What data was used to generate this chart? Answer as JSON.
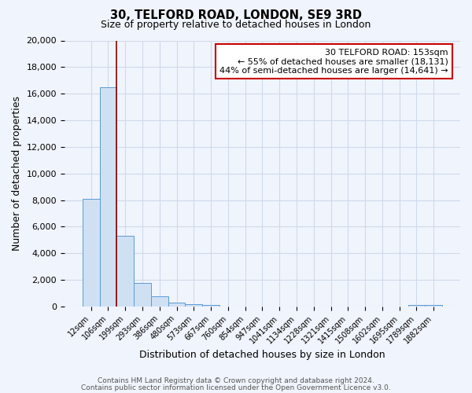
{
  "title": "30, TELFORD ROAD, LONDON, SE9 3RD",
  "subtitle": "Size of property relative to detached houses in London",
  "xlabel": "Distribution of detached houses by size in London",
  "ylabel": "Number of detached properties",
  "bar_labels": [
    "12sqm",
    "106sqm",
    "199sqm",
    "293sqm",
    "386sqm",
    "480sqm",
    "573sqm",
    "667sqm",
    "760sqm",
    "854sqm",
    "947sqm",
    "1041sqm",
    "1134sqm",
    "1228sqm",
    "1321sqm",
    "1415sqm",
    "1508sqm",
    "1602sqm",
    "1695sqm",
    "1789sqm",
    "1882sqm"
  ],
  "bar_values": [
    8100,
    16500,
    5300,
    1800,
    750,
    280,
    200,
    120,
    0,
    0,
    0,
    0,
    0,
    0,
    0,
    0,
    0,
    0,
    0,
    100,
    100
  ],
  "bar_color": "#cfe0f3",
  "bar_edge_color": "#5b9bd5",
  "property_line_color": "#8b0000",
  "property_line_x": 1.47,
  "annotation_line1": "30 TELFORD ROAD: 153sqm",
  "annotation_line2": "← 55% of detached houses are smaller (18,131)",
  "annotation_line3": "44% of semi-detached houses are larger (14,641) →",
  "annotation_box_color": "#ffffff",
  "annotation_box_edge": "#cc0000",
  "ylim": [
    0,
    20000
  ],
  "yticks": [
    0,
    2000,
    4000,
    6000,
    8000,
    10000,
    12000,
    14000,
    16000,
    18000,
    20000
  ],
  "footer_line1": "Contains HM Land Registry data © Crown copyright and database right 2024.",
  "footer_line2": "Contains public sector information licensed under the Open Government Licence v3.0.",
  "background_color": "#f0f4fc",
  "plot_bg_color": "#f0f4fc",
  "grid_color": "#d0daea"
}
